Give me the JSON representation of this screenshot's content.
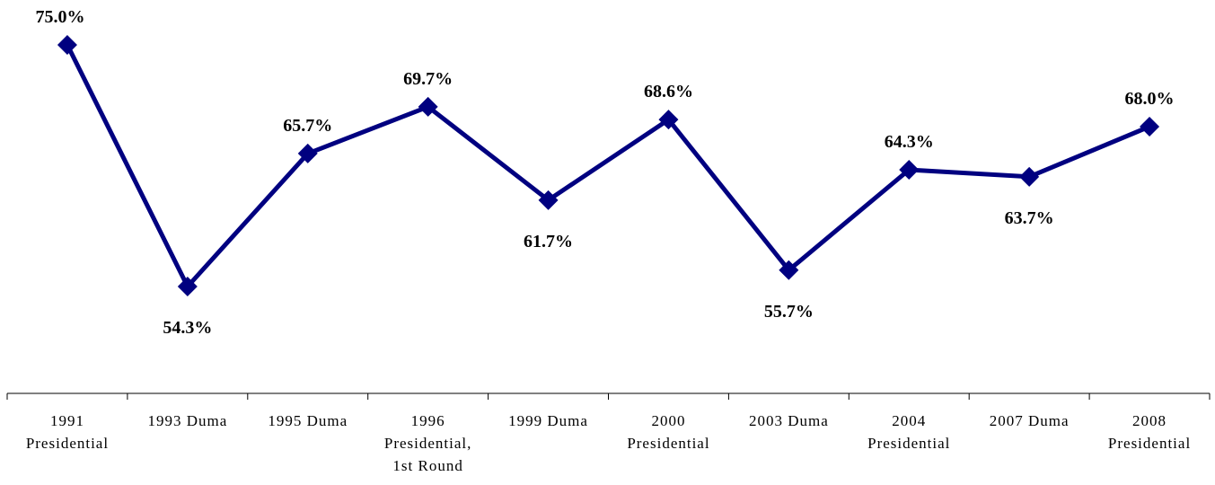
{
  "chart_data": {
    "type": "line",
    "categories": [
      [
        "1991",
        "Presidential"
      ],
      [
        "1993 Duma"
      ],
      [
        "1995 Duma"
      ],
      [
        "1996",
        "Presidential,",
        "1st Round"
      ],
      [
        "1999 Duma"
      ],
      [
        "2000",
        "Presidential"
      ],
      [
        "2003 Duma"
      ],
      [
        "2004",
        "Presidential"
      ],
      [
        "2007 Duma"
      ],
      [
        "2008",
        "Presidential"
      ]
    ],
    "series": [
      {
        "values": [
          75.0,
          54.3,
          65.7,
          69.7,
          61.7,
          68.6,
          55.7,
          64.3,
          63.7,
          68.0
        ],
        "labels": [
          "75.0%",
          "54.3%",
          "65.7%",
          "69.7%",
          "61.7%",
          "68.6%",
          "55.7%",
          "64.3%",
          "63.7%",
          "68.0%"
        ],
        "label_positions": [
          "above",
          "below",
          "above",
          "above",
          "below",
          "above",
          "below",
          "above",
          "below",
          "above"
        ],
        "color": "#000080",
        "marker": "diamond"
      }
    ],
    "title": "",
    "xlabel": "",
    "ylabel": "",
    "ylim": [
      45,
      79
    ],
    "y_axis_visible": false,
    "grid": false,
    "legend": "none"
  }
}
